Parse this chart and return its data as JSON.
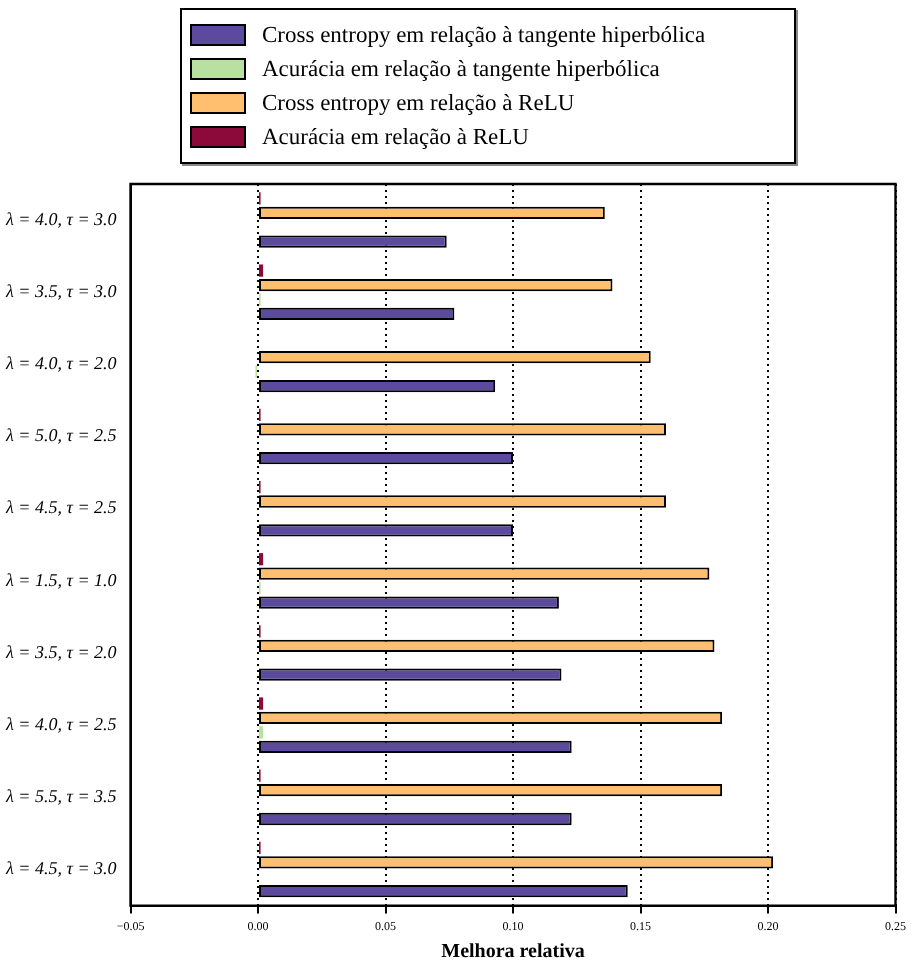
{
  "chart_data": {
    "type": "bar",
    "orientation": "horizontal",
    "xlabel": "Melhora relativa",
    "categories": [
      "λ = 4.0, τ = 3.0",
      "λ = 3.5, τ = 3.0",
      "λ = 4.0, τ = 2.0",
      "λ = 5.0, τ = 2.5",
      "λ = 4.5, τ = 2.5",
      "λ = 1.5, τ = 1.0",
      "λ = 3.5, τ = 2.0",
      "λ = 4.0, τ = 2.5",
      "λ = 5.5, τ = 3.5",
      "λ = 4.5, τ = 3.0"
    ],
    "series": [
      {
        "name": "Cross entropy em relação à tangente hiperbólica",
        "color": "#5b4a9e",
        "values": [
          0.074,
          0.077,
          0.093,
          0.1,
          0.1,
          0.118,
          0.119,
          0.123,
          0.123,
          0.145
        ]
      },
      {
        "name": "Acurácia em relação à tangente hiperbólica",
        "color": "#b8e0a0",
        "values": [
          0,
          0.001,
          -0.001,
          0,
          0,
          0.001,
          0,
          0.002,
          0,
          0
        ]
      },
      {
        "name": "Cross entropy em relação à ReLU",
        "color": "#ffbf6e",
        "values": [
          0.136,
          0.139,
          0.154,
          0.16,
          0.16,
          0.177,
          0.179,
          0.182,
          0.182,
          0.202
        ]
      },
      {
        "name": "Acurácia em relação à ReLU",
        "color": "#8b0a3a",
        "values": [
          0.001,
          0.002,
          0,
          0.001,
          0.001,
          0.002,
          0.001,
          0.002,
          0.001,
          0.001
        ]
      }
    ],
    "xlim": [
      -0.05,
      0.25
    ],
    "xticks": [
      {
        "value": -0.05,
        "label": "−0.05"
      },
      {
        "value": 0,
        "label": "0.00"
      },
      {
        "value": 0.05,
        "label": "0.05"
      },
      {
        "value": 0.1,
        "label": "0.10"
      },
      {
        "value": 0.15,
        "label": "0.15"
      },
      {
        "value": 0.2,
        "label": "0.20"
      },
      {
        "value": 0.25,
        "label": "0.25"
      }
    ],
    "grid": "x",
    "legend": "top"
  }
}
